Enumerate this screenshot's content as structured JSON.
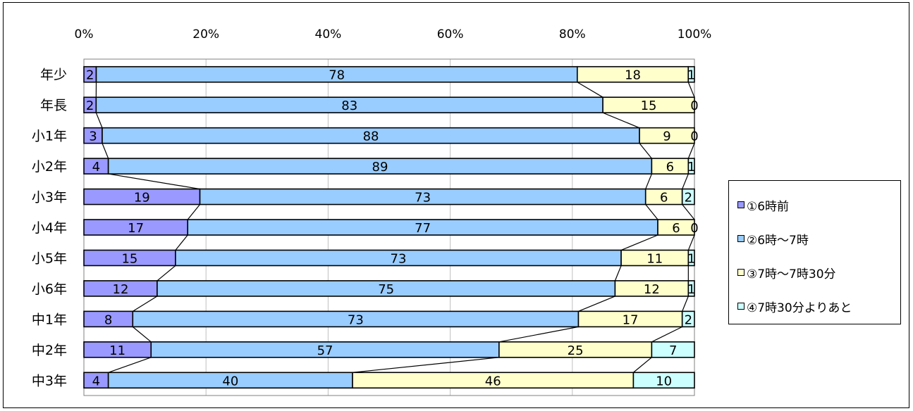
{
  "chart_data": {
    "type": "bar",
    "orientation": "horizontal",
    "stacked": "percent",
    "categories": [
      "年少",
      "年長",
      "小1年",
      "小2年",
      "小3年",
      "小4年",
      "小5年",
      "小6年",
      "中1年",
      "中2年",
      "中3年"
    ],
    "series": [
      {
        "name": "①6時前",
        "color": "#9999ff",
        "values": [
          2,
          2,
          3,
          4,
          19,
          17,
          15,
          12,
          8,
          11,
          4
        ]
      },
      {
        "name": "②6時～7時",
        "color": "#99ccff",
        "values": [
          78,
          83,
          88,
          89,
          73,
          77,
          73,
          75,
          73,
          57,
          40
        ]
      },
      {
        "name": "③7時～7時30分",
        "color": "#ffffcc",
        "values": [
          18,
          15,
          9,
          6,
          6,
          6,
          11,
          12,
          17,
          25,
          46
        ]
      },
      {
        "name": "④7時30分よりあと",
        "color": "#ccffff",
        "values": [
          1,
          0,
          0,
          1,
          2,
          0,
          1,
          1,
          2,
          7,
          10
        ]
      }
    ],
    "x_ticks": [
      "0%",
      "20%",
      "40%",
      "60%",
      "80%",
      "100%"
    ],
    "xlim": [
      0,
      100
    ],
    "grid": true,
    "legend_position": "right",
    "series_lines": true
  }
}
